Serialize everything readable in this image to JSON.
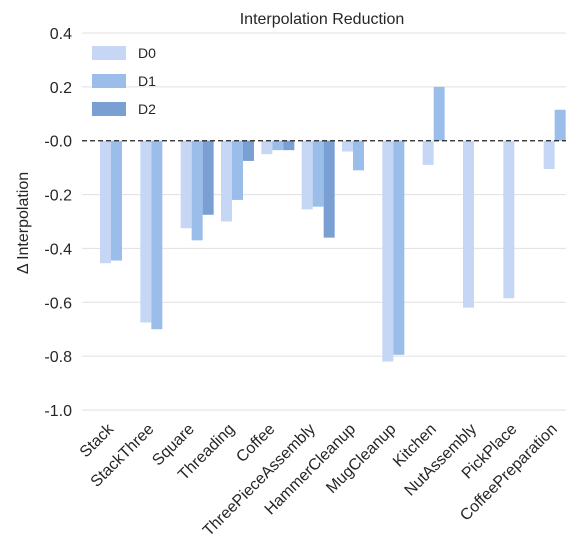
{
  "chart_data": {
    "type": "bar",
    "title": "Interpolation Reduction",
    "xlabel": "",
    "ylabel": "Δ Interpolation",
    "ylim": [
      -1.0,
      0.4
    ],
    "yticks": [
      0.4,
      0.2,
      0.0,
      -0.2,
      -0.4,
      -0.6,
      -0.8,
      -1.0
    ],
    "ytick_labels": [
      "0.4",
      "0.2",
      "-0.0",
      "-0.2",
      "-0.4",
      "-0.6",
      "-0.8",
      "-1.0"
    ],
    "grid": true,
    "zero_line": "dashed",
    "legend": "top-left",
    "categories": [
      "Stack",
      "StackThree",
      "Square",
      "Threading",
      "Coffee",
      "ThreePieceAssembly",
      "HammerCleanup",
      "MugCleanup",
      "Kitchen",
      "NutAssembly",
      "PickPlace",
      "CoffeePreparation"
    ],
    "series": [
      {
        "name": "D0",
        "color": "#c6d7f5",
        "values": [
          -0.455,
          -0.675,
          -0.325,
          -0.3,
          -0.05,
          -0.255,
          -0.04,
          -0.82,
          -0.09,
          -0.62,
          -0.585,
          -0.105
        ]
      },
      {
        "name": "D1",
        "color": "#9bbdea",
        "values": [
          -0.445,
          -0.7,
          -0.37,
          -0.22,
          -0.035,
          -0.245,
          -0.11,
          -0.795,
          0.2,
          null,
          null,
          0.115
        ]
      },
      {
        "name": "D2",
        "color": "#7a9fd3",
        "values": [
          null,
          null,
          -0.275,
          -0.075,
          -0.035,
          -0.36,
          null,
          null,
          null,
          null,
          null,
          null
        ]
      }
    ]
  }
}
